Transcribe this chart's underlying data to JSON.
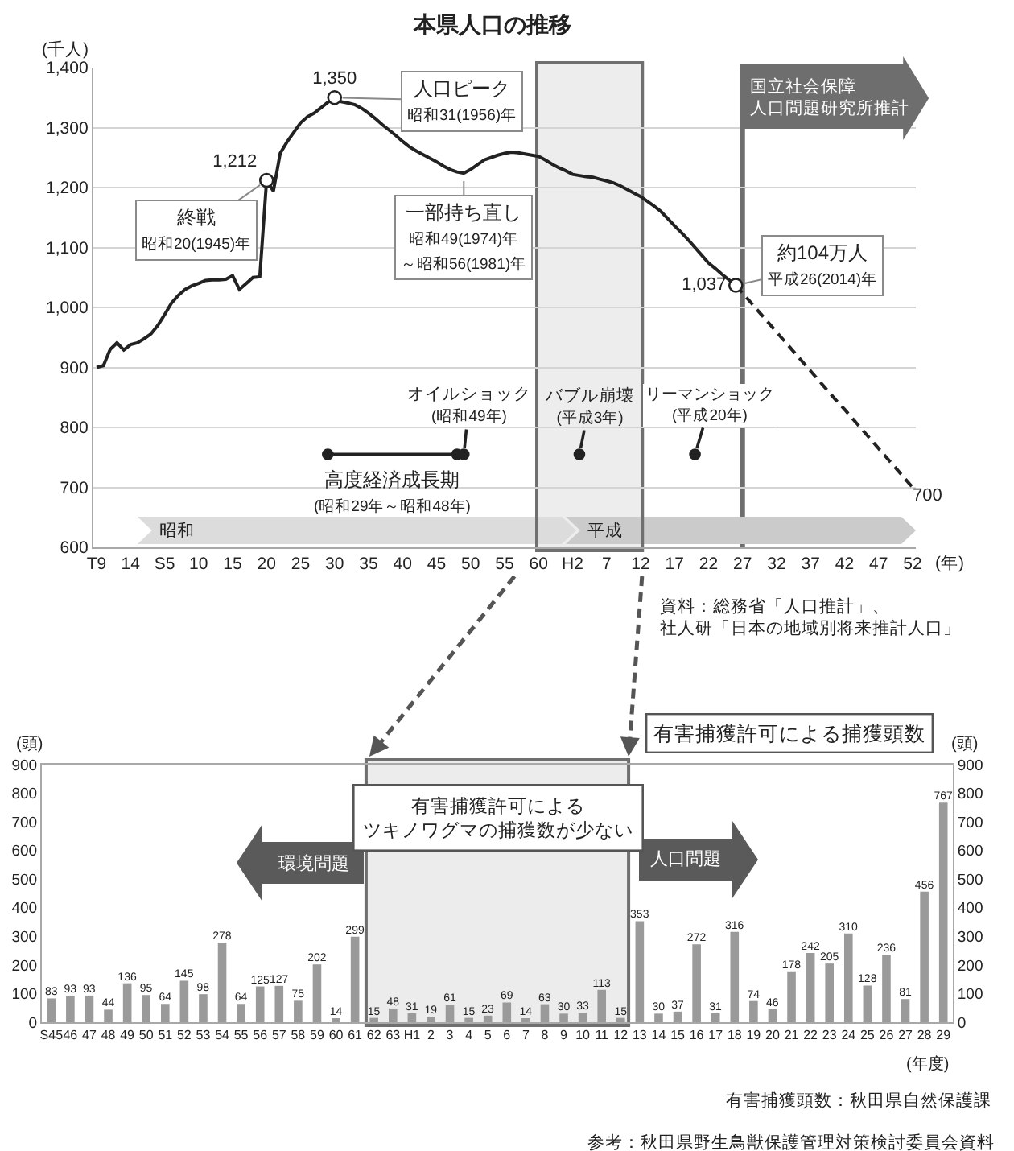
{
  "chart_data": [
    {
      "type": "line",
      "title": "本県人口の推移",
      "xlabel": "(年)",
      "ylabel": "(千人)",
      "categories": [
        "T9",
        null,
        null,
        null,
        null,
        "14",
        null,
        null,
        null,
        null,
        "S5",
        null,
        null,
        null,
        null,
        "10",
        null,
        null,
        null,
        null,
        "15",
        null,
        null,
        null,
        null,
        "20",
        null,
        null,
        null,
        null,
        "25",
        null,
        null,
        null,
        null,
        "30",
        null,
        null,
        null,
        null,
        "35",
        null,
        null,
        null,
        null,
        "40",
        null,
        null,
        null,
        null,
        "45",
        null,
        null,
        null,
        null,
        "50",
        null,
        null,
        null,
        null,
        "55",
        null,
        null,
        null,
        null,
        "60",
        null,
        null,
        null,
        null,
        "H2",
        null,
        null,
        null,
        null,
        "7",
        null,
        null,
        null,
        null,
        "12",
        null,
        null,
        null,
        null,
        "17",
        null,
        null,
        null,
        null,
        "22",
        null,
        null,
        null,
        null,
        "27",
        null,
        null,
        null,
        null,
        "32",
        null,
        null,
        null,
        null,
        "37",
        null,
        null,
        null,
        null,
        "42",
        null,
        null,
        null,
        null,
        "47",
        null,
        null,
        null,
        null,
        "52"
      ],
      "ylim": [
        600,
        1400
      ],
      "yticks": [
        {
          "value": 1400,
          "label": "1,400"
        },
        {
          "value": 1300,
          "label": "1,300"
        },
        {
          "value": 1200,
          "label": "1,200"
        },
        {
          "value": 1100,
          "label": "1,100"
        },
        {
          "value": 1000,
          "label": "1,000"
        },
        900,
        800,
        700,
        600
      ],
      "grid": "y",
      "series": [
        {
          "type": "line",
          "color": "#222222",
          "values": [
            900,
            903,
            930,
            941,
            929,
            938,
            941,
            948,
            956,
            970,
            988,
            1007,
            1020,
            1030,
            1036,
            1040,
            1045,
            1046,
            1046,
            1047,
            1053,
            1030,
            1040,
            1050,
            1051,
            1212,
            1194,
            1257,
            1276,
            1292,
            1308,
            1318,
            1324,
            1333,
            1342,
            1350,
            1343,
            1341,
            1338,
            1332,
            1324,
            1315,
            1305,
            1296,
            1287,
            1277,
            1268,
            1261,
            1255,
            1249,
            1243,
            1236,
            1230,
            1226,
            1224,
            1230,
            1238,
            1246,
            1250,
            1254,
            1257,
            1259,
            1258,
            1256,
            1254,
            1252,
            1246,
            1239,
            1233,
            1228,
            1222,
            1220,
            1218,
            1217,
            1214,
            1211,
            1208,
            1203,
            1197,
            1191,
            1185,
            1177,
            1169,
            1160,
            1148,
            1136,
            1125,
            1113,
            1100,
            1087,
            1074,
            1065,
            1055,
            1046,
            1037,
            null,
            null,
            null,
            null,
            null,
            null,
            null,
            null,
            null,
            null,
            null,
            null,
            null,
            null,
            null,
            null,
            null,
            null,
            null,
            null,
            null,
            null,
            null,
            null,
            null,
            null
          ]
        },
        {
          "type": "line",
          "color": "#222222",
          "line_style": "dashed",
          "values": [
            null,
            null,
            null,
            null,
            null,
            null,
            null,
            null,
            null,
            null,
            null,
            null,
            null,
            null,
            null,
            null,
            null,
            null,
            null,
            null,
            null,
            null,
            null,
            null,
            null,
            null,
            null,
            null,
            null,
            null,
            null,
            null,
            null,
            null,
            null,
            null,
            null,
            null,
            null,
            null,
            null,
            null,
            null,
            null,
            null,
            null,
            null,
            null,
            null,
            null,
            null,
            null,
            null,
            null,
            null,
            null,
            null,
            null,
            null,
            null,
            null,
            null,
            null,
            null,
            null,
            null,
            null,
            null,
            null,
            null,
            null,
            null,
            null,
            null,
            null,
            null,
            null,
            null,
            null,
            null,
            null,
            null,
            null,
            null,
            null,
            null,
            null,
            null,
            null,
            null,
            null,
            null,
            null,
            null,
            1037,
            1024,
            1011,
            998,
            985,
            972,
            959,
            946,
            933,
            920,
            907,
            894,
            881,
            868,
            855,
            842,
            830,
            817,
            804,
            791,
            778,
            765,
            752,
            739,
            726,
            713,
            700
          ],
          "value_labels": [
            null,
            null,
            null,
            null,
            null,
            null,
            null,
            null,
            null,
            null,
            null,
            null,
            null,
            null,
            null,
            null,
            null,
            null,
            null,
            null,
            null,
            null,
            null,
            null,
            null,
            null,
            null,
            null,
            null,
            null,
            null,
            null,
            null,
            null,
            null,
            null,
            null,
            null,
            null,
            null,
            null,
            null,
            null,
            null,
            null,
            null,
            null,
            null,
            null,
            null,
            null,
            null,
            null,
            null,
            null,
            null,
            null,
            null,
            null,
            null,
            null,
            null,
            null,
            null,
            null,
            null,
            null,
            null,
            null,
            null,
            null,
            null,
            null,
            null,
            null,
            null,
            null,
            null,
            null,
            null,
            null,
            null,
            null,
            null,
            null,
            null,
            null,
            null,
            null,
            null,
            null,
            null,
            null,
            null,
            null,
            null,
            null,
            null,
            null,
            null,
            null,
            null,
            null,
            null,
            null,
            null,
            null,
            null,
            null,
            null,
            null,
            null,
            null,
            null,
            null,
            null,
            null,
            null,
            null,
            null,
            "700"
          ]
        },
        {
          "type": "scatter",
          "color": "#ffffff",
          "marker": "circle",
          "values": [
            null,
            null,
            null,
            null,
            null,
            null,
            null,
            null,
            null,
            null,
            null,
            null,
            null,
            null,
            null,
            null,
            null,
            null,
            null,
            null,
            null,
            null,
            null,
            null,
            null,
            1212,
            null,
            null,
            null,
            null,
            null,
            null,
            null,
            null,
            null,
            1350,
            null,
            null,
            null,
            null,
            null,
            null,
            null,
            null,
            null,
            null,
            null,
            null,
            null,
            null,
            null,
            null,
            null,
            null,
            null,
            null,
            null,
            null,
            null,
            null,
            null,
            null,
            null,
            null,
            null,
            null,
            null,
            null,
            null,
            null,
            null,
            null,
            null,
            null,
            null,
            null,
            null,
            null,
            null,
            null,
            null,
            null,
            null,
            null,
            null,
            null,
            null,
            null,
            null,
            null,
            null,
            null,
            null,
            null,
            1037,
            null,
            null,
            null,
            null,
            null,
            null,
            null,
            null,
            null,
            null,
            null,
            null,
            null,
            null,
            null,
            null,
            null,
            null,
            null,
            null,
            null,
            null,
            null,
            null,
            null,
            null
          ],
          "value_labels": [
            null,
            null,
            null,
            null,
            null,
            null,
            null,
            null,
            null,
            null,
            null,
            null,
            null,
            null,
            null,
            null,
            null,
            null,
            null,
            null,
            null,
            null,
            null,
            null,
            null,
            "1,212",
            null,
            null,
            null,
            null,
            null,
            null,
            null,
            null,
            null,
            "1,350",
            null,
            null,
            null,
            null,
            null,
            null,
            null,
            null,
            null,
            null,
            null,
            null,
            null,
            null,
            null,
            null,
            null,
            null,
            null,
            null,
            null,
            null,
            null,
            null,
            null,
            null,
            null,
            null,
            null,
            null,
            null,
            null,
            null,
            null,
            null,
            null,
            null,
            null,
            null,
            null,
            null,
            null,
            null,
            null,
            null,
            null,
            null,
            null,
            null,
            null,
            null,
            null,
            null,
            null,
            null,
            null,
            null,
            null,
            "1,037",
            null,
            null,
            null,
            null,
            null,
            null,
            null,
            null,
            null,
            null,
            null,
            null,
            null,
            null,
            null,
            null,
            null,
            null,
            null,
            null,
            null,
            null,
            null,
            null,
            null,
            null
          ]
        },
        {
          "type": "line",
          "color": "#222222",
          "values": [
            null,
            null,
            null,
            null,
            null,
            null,
            null,
            null,
            null,
            null,
            null,
            null,
            null,
            null,
            null,
            null,
            null,
            null,
            null,
            null,
            null,
            null,
            null,
            null,
            null,
            null,
            null,
            null,
            null,
            null,
            null,
            null,
            null,
            null,
            755,
            755,
            755,
            755,
            755,
            755,
            755,
            755,
            755,
            755,
            755,
            755,
            755,
            755,
            755,
            755,
            755,
            755,
            755,
            755,
            null,
            null,
            null,
            null,
            null,
            null,
            null,
            null,
            null,
            null,
            null,
            null,
            null,
            null,
            null,
            null,
            null,
            null,
            null,
            null,
            null,
            null,
            null,
            null,
            null,
            null,
            null,
            null,
            null,
            null,
            null,
            null,
            null,
            null,
            null,
            null,
            null,
            null,
            null,
            null,
            null,
            null,
            null,
            null,
            null,
            null,
            null,
            null,
            null,
            null,
            null,
            null,
            null,
            null,
            null,
            null,
            null,
            null,
            null,
            null,
            null,
            null,
            null,
            null,
            null,
            null,
            null
          ]
        },
        {
          "type": "scatter",
          "color": "#222222",
          "marker": "circle",
          "values": [
            null,
            null,
            null,
            null,
            null,
            null,
            null,
            null,
            null,
            null,
            null,
            null,
            null,
            null,
            null,
            null,
            null,
            null,
            null,
            null,
            null,
            null,
            null,
            null,
            null,
            null,
            null,
            null,
            null,
            null,
            null,
            null,
            null,
            null,
            755,
            null,
            null,
            null,
            null,
            null,
            null,
            null,
            null,
            null,
            null,
            null,
            null,
            null,
            null,
            null,
            null,
            null,
            null,
            755,
            755,
            null,
            null,
            null,
            null,
            null,
            null,
            null,
            null,
            null,
            null,
            null,
            null,
            null,
            null,
            null,
            null,
            755,
            null,
            null,
            null,
            null,
            null,
            null,
            null,
            null,
            null,
            null,
            null,
            null,
            null,
            null,
            null,
            null,
            755,
            null,
            null,
            null,
            null,
            null,
            null,
            null,
            null,
            null,
            null,
            null,
            null,
            null,
            null,
            null,
            null,
            null,
            null,
            null,
            null,
            null,
            null,
            null,
            null,
            null,
            null,
            null,
            null,
            null,
            null,
            null,
            null
          ]
        }
      ],
      "ref_lines": [
        {
          "axis": "x",
          "value": "27",
          "label": "国立社会保障人口問題研究所推計",
          "color": "#6e6e6e"
        }
      ],
      "bands": [
        {
          "axis": "x",
          "from": "60",
          "to": "12",
          "color": "#ededed"
        }
      ],
      "annotations": [
        {
          "text": "終戦昭和20(1945)年",
          "x": "20",
          "y": 1212
        },
        {
          "text": "人口ピーク昭和31(1956)年",
          "x": "30",
          "y": 1350
        },
        {
          "text": "一部持ち直し昭和49(1974)年～昭和56(1981)年",
          "y": 1224
        },
        "約104万人平成26(2014)年",
        {
          "text": "高度経済成長期(昭和29年～昭和48年)",
          "y": 755
        },
        {
          "text": "オイルショック(昭和49年)",
          "y": 755
        },
        {
          "text": "バブル崩壊(平成3年)",
          "y": 755
        },
        "リーマンショック(平成20年)",
        "昭和",
        "平成",
        "資料：総務省「人口推計」、社人研「日本の地域別将来推計人口」"
      ]
    },
    {
      "type": "bar",
      "title": "有害捕獲許可による捕獲頭数",
      "xlabel": "(年度)",
      "ylabel": "(頭)",
      "y2label": "(頭)",
      "categories": [
        "S45",
        "46",
        "47",
        "48",
        "49",
        "50",
        "51",
        "52",
        "53",
        "54",
        "55",
        "56",
        "57",
        "58",
        "59",
        "60",
        "61",
        "62",
        "63",
        "H1",
        "2",
        "3",
        "4",
        "5",
        "6",
        "7",
        "8",
        "9",
        "10",
        "11",
        "12",
        "13",
        "14",
        "15",
        "16",
        "17",
        "18",
        "19",
        "20",
        "21",
        "22",
        "23",
        "24",
        "25",
        "26",
        "27",
        "28",
        "29"
      ],
      "values": [
        83,
        93,
        93,
        44,
        136,
        95,
        64,
        145,
        98,
        278,
        64,
        125,
        127,
        75,
        202,
        14,
        299,
        15,
        48,
        31,
        19,
        61,
        15,
        23,
        69,
        14,
        63,
        30,
        33,
        113,
        15,
        353,
        30,
        37,
        272,
        31,
        316,
        74,
        46,
        178,
        242,
        205,
        310,
        128,
        236,
        81,
        456,
        767
      ],
      "color": "#9a9a9a",
      "data_labels": true,
      "ylim": [
        0,
        900
      ],
      "yticks": [
        0,
        100,
        200,
        300,
        400,
        500,
        600,
        700,
        800,
        900
      ],
      "y2lim": [
        0,
        900
      ],
      "y2ticks": [
        0,
        100,
        200,
        300,
        400,
        500,
        600,
        700,
        800,
        900
      ],
      "bands": [
        {
          "axis": "x",
          "from": "62",
          "to": "12",
          "label": "有害捕獲許可によるツキノワグマの捕獲数が少ない",
          "color": "#ececec"
        }
      ],
      "annotations": [
        "環境問題",
        "人口問題",
        "有害捕獲頭数：秋田県自然保護課",
        "参考：秋田県野生鳥獣保護管理対策検討委員会資料"
      ]
    }
  ]
}
